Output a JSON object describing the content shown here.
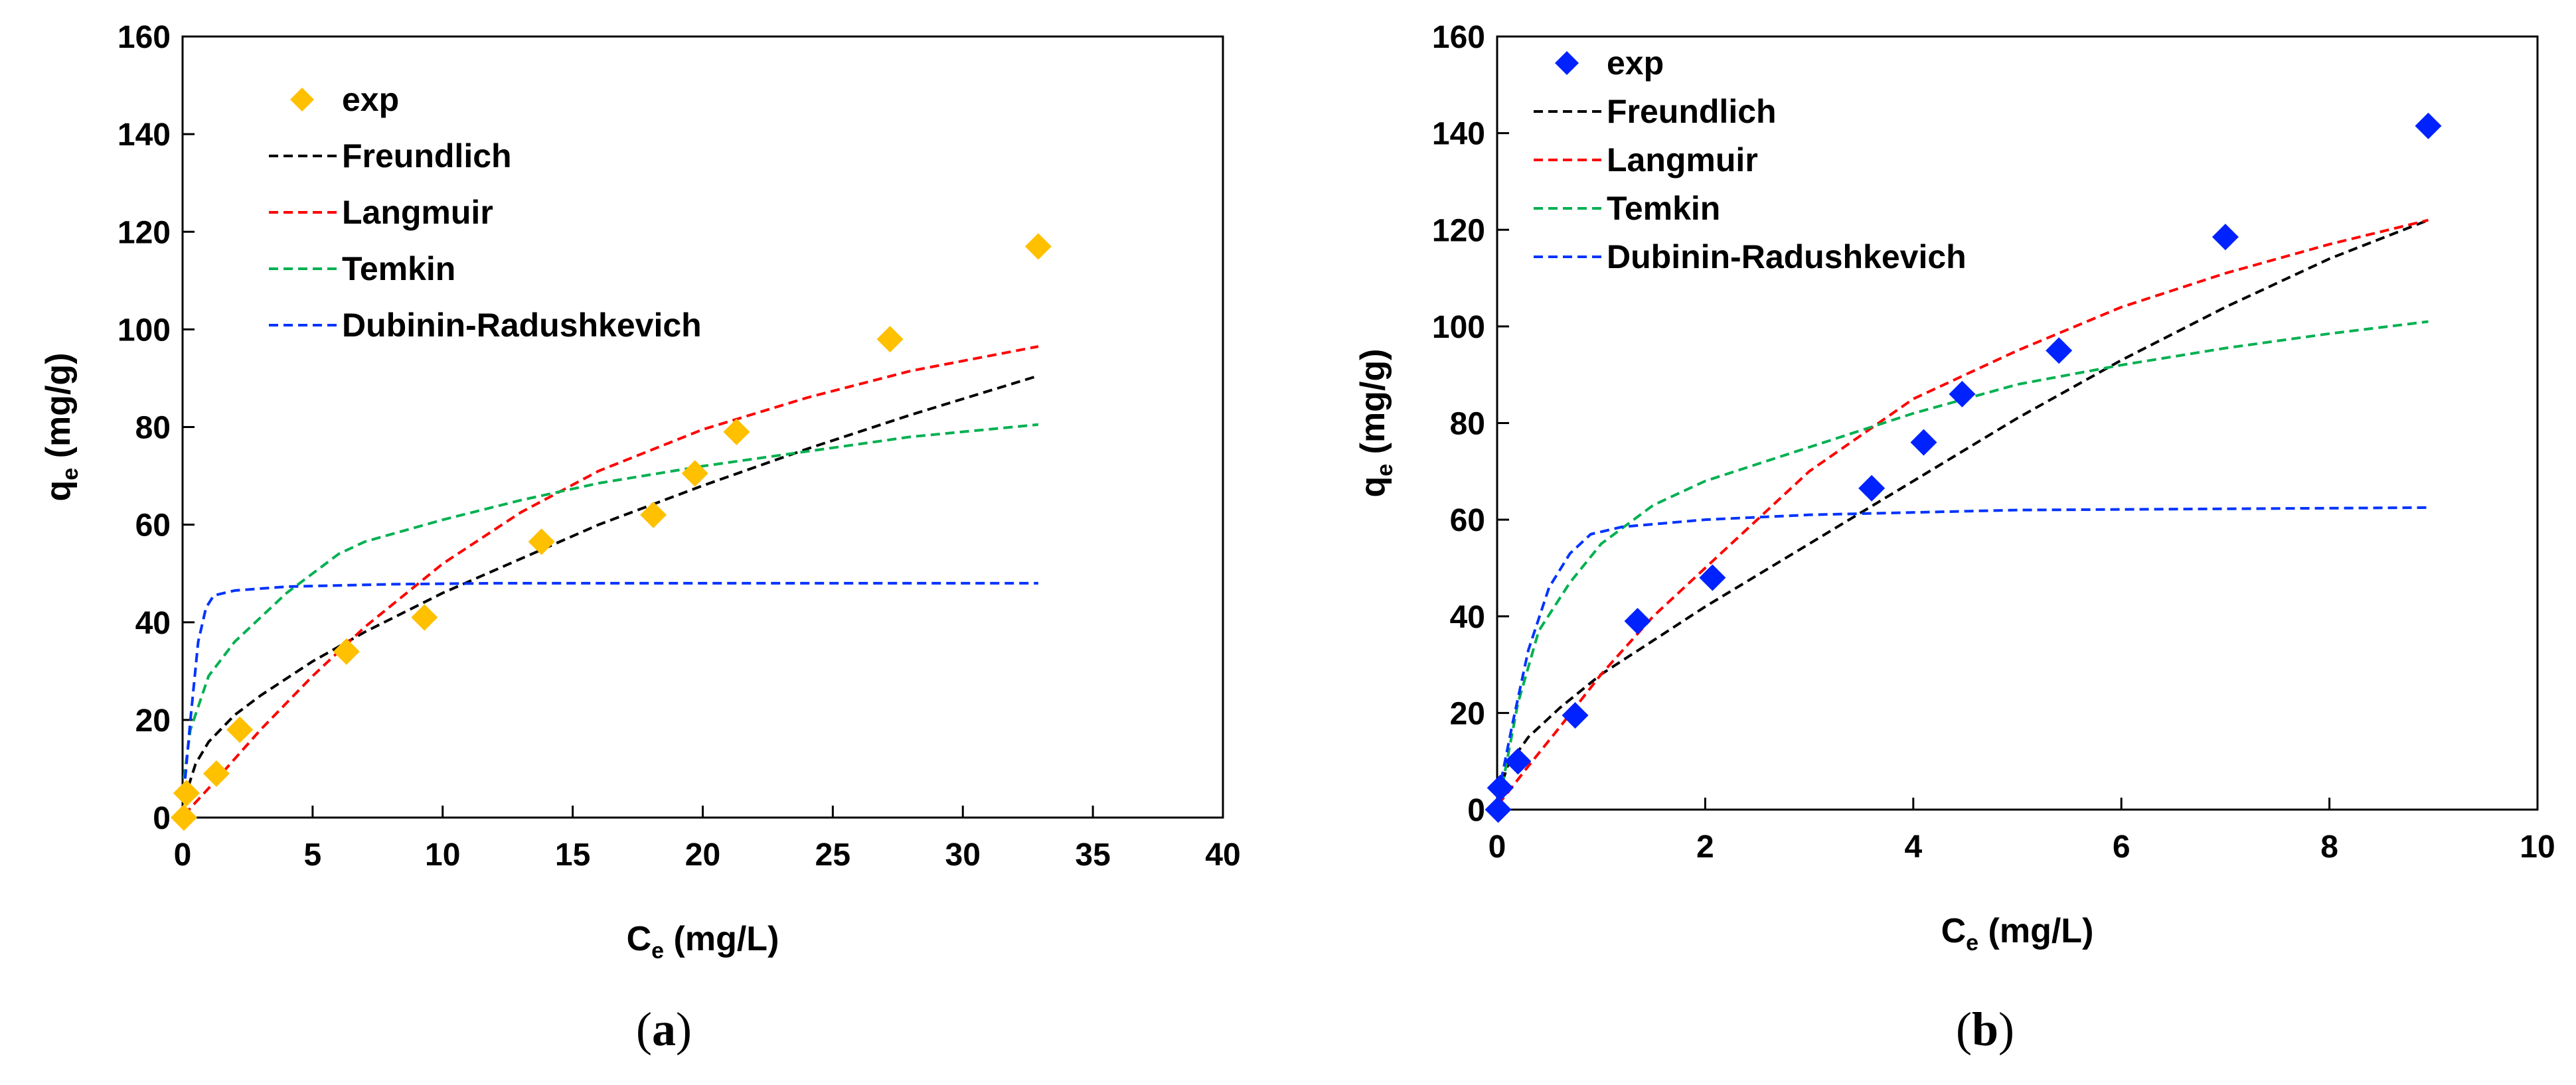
{
  "panels": [
    {
      "caption": "(a)",
      "chart_data": {
        "type": "scatter",
        "xlabel": "C",
        "xlabel_sub": "e",
        "xlabel_unit": " (mg/L)",
        "ylabel": "q",
        "ylabel_sub": "e",
        "ylabel_unit": " (mg/g)",
        "xlim": [
          0,
          40
        ],
        "ylim": [
          0,
          160
        ],
        "xticks": [
          0,
          5,
          10,
          15,
          20,
          25,
          30,
          35,
          40
        ],
        "yticks": [
          0,
          20,
          40,
          60,
          80,
          100,
          120,
          140,
          160
        ],
        "grid": false,
        "legend_position": "top-left",
        "series": [
          {
            "name": "exp",
            "kind": "markers",
            "color": "#FFC000",
            "x": [
              0.05,
              0.15,
              1.3,
              2.2,
              6.3,
              9.3,
              13.8,
              18.1,
              19.7,
              21.3,
              27.2,
              32.9
            ],
            "y": [
              0,
              5,
              9,
              18,
              34,
              41,
              56.5,
              62,
              70.5,
              79,
              98,
              117
            ]
          },
          {
            "name": "Freundlich",
            "kind": "dashed-line",
            "color": "#000000",
            "x": [
              0.05,
              0.5,
              1,
              2,
              3,
              5,
              7,
              10,
              13,
              16,
              20,
              24,
              28,
              32.9
            ],
            "y": [
              3.5,
              11,
              15.5,
              21,
              25,
              32,
              38,
              46,
              53,
              60,
              68,
              75.5,
              82.5,
              90.5
            ]
          },
          {
            "name": "Langmuir",
            "kind": "dashed-line",
            "color": "#FF0000",
            "x": [
              0.05,
              1,
              2,
              3,
              5,
              7,
              10,
              13,
              16,
              20,
              24,
              28,
              32.9
            ],
            "y": [
              0.5,
              6,
              12,
              18,
              29,
              39,
              52,
              62.5,
              71,
              79.5,
              86,
              91.5,
              96.5
            ]
          },
          {
            "name": "Temkin",
            "kind": "dashed-line",
            "color": "#00B050",
            "x": [
              0.05,
              0.3,
              1,
              2,
              3,
              4,
              5,
              6,
              7,
              8,
              10,
              13,
              16,
              20,
              24,
              28,
              32.9
            ],
            "y": [
              8,
              18,
              29,
              36,
              41,
              46,
              50,
              54,
              56.5,
              58,
              61,
              65,
              68.5,
              72,
              75,
              78,
              80.5
            ]
          },
          {
            "name": "Dubinin-Radushkevich",
            "kind": "dashed-line",
            "color": "#0033FF",
            "x": [
              0.05,
              0.3,
              0.6,
              0.9,
              1.2,
              2,
              4,
              8,
              12,
              20,
              32.9
            ],
            "y": [
              5,
              20,
              36,
              43,
              45.5,
              46.5,
              47.3,
              47.8,
              48,
              48,
              48
            ]
          }
        ]
      }
    },
    {
      "caption": "(b)",
      "chart_data": {
        "type": "scatter",
        "xlabel": "C",
        "xlabel_sub": "e",
        "xlabel_unit": " (mg/L)",
        "ylabel": "q",
        "ylabel_sub": "e",
        "ylabel_unit": " (mg/g)",
        "xlim": [
          0,
          10
        ],
        "ylim": [
          0,
          160
        ],
        "xticks": [
          0,
          2,
          4,
          6,
          8,
          10
        ],
        "yticks": [
          0,
          20,
          40,
          60,
          80,
          100,
          120,
          140,
          160
        ],
        "grid": false,
        "legend_position": "top-left",
        "series": [
          {
            "name": "exp",
            "kind": "markers",
            "color": "#0022FF",
            "x": [
              0.01,
              0.03,
              0.2,
              0.75,
              1.35,
              2.07,
              3.6,
              4.1,
              4.47,
              5.4,
              7.0,
              8.95
            ],
            "y": [
              0,
              4.5,
              10,
              19.5,
              39,
              48,
              66.5,
              76,
              86,
              95,
              118.5,
              141.5
            ]
          },
          {
            "name": "Freundlich",
            "kind": "dashed-line",
            "color": "#000000",
            "x": [
              0.01,
              0.1,
              0.3,
              0.6,
              1,
              1.5,
              2,
              3,
              4,
              5,
              6,
              7,
              8,
              8.95
            ],
            "y": [
              3,
              9,
              15,
              21,
              28,
              35,
              42,
              55,
              68,
              81,
              93,
              104,
              114,
              122
            ]
          },
          {
            "name": "Langmuir",
            "kind": "dashed-line",
            "color": "#FF0000",
            "x": [
              0.01,
              0.3,
              0.6,
              1,
              1.5,
              2,
              3,
              4,
              5,
              6,
              7,
              8,
              8.95
            ],
            "y": [
              1,
              9,
              17,
              28,
              40,
              50,
              70,
              85,
              95,
              104,
              111,
              117,
              122
            ]
          },
          {
            "name": "Temkin",
            "kind": "dashed-line",
            "color": "#00B050",
            "x": [
              0.05,
              0.2,
              0.4,
              0.7,
              1,
              1.5,
              2,
              3,
              4,
              5,
              6,
              7,
              8,
              8.95
            ],
            "y": [
              5,
              22,
              37,
              47,
              55,
              63,
              68,
              75,
              82,
              88,
              92,
              95.5,
              98.5,
              101
            ]
          },
          {
            "name": "Dubinin-Radushkevich",
            "kind": "dashed-line",
            "color": "#0033FF",
            "x": [
              0.01,
              0.15,
              0.3,
              0.5,
              0.7,
              0.9,
              1.2,
              2,
              3,
              5,
              8.95
            ],
            "y": [
              3,
              18,
              33,
              46,
              53,
              57,
              58.5,
              60,
              61,
              62,
              62.5
            ]
          }
        ]
      }
    }
  ]
}
